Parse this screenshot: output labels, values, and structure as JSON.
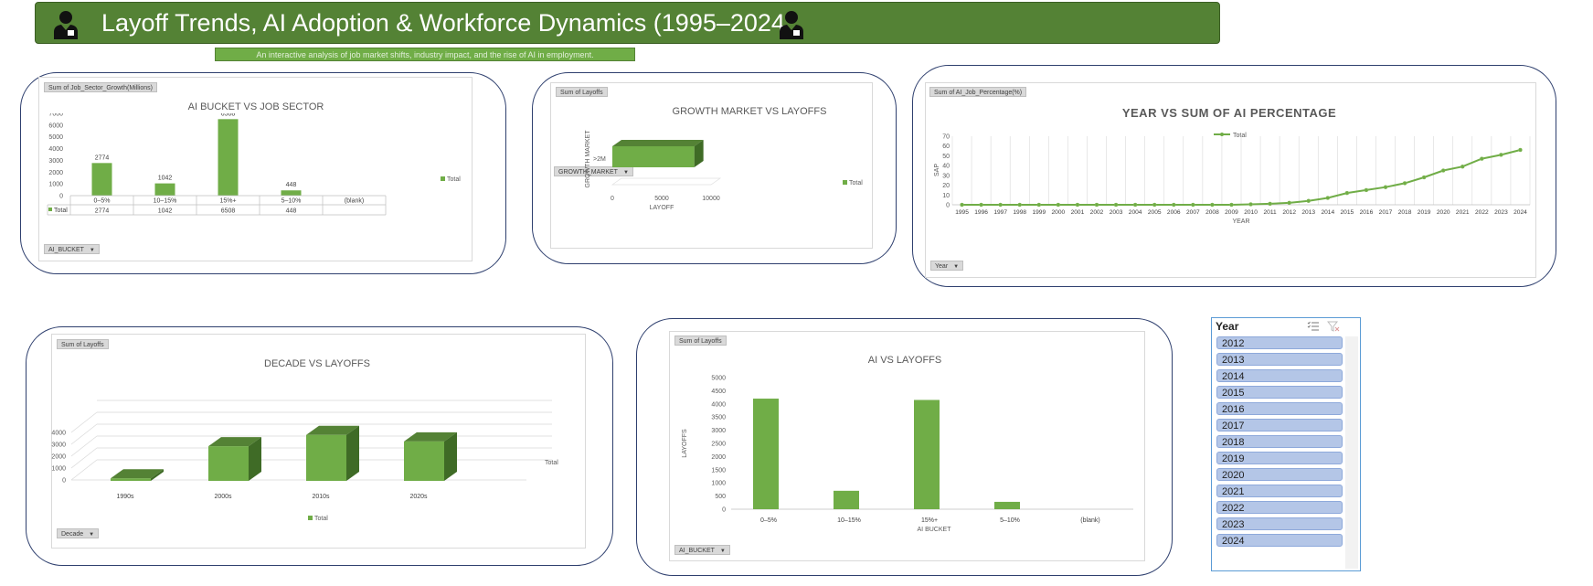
{
  "header": {
    "title": "Layoff Trends, AI Adoption & Workforce Dynamics (1995–2024",
    "subtitle": "An interactive analysis of job market shifts, industry impact, and the rise of AI in employment."
  },
  "charts": {
    "c1": {
      "value_field": "Sum of Job_Sector_Growth(Millions)",
      "axis_field": "AI_BUCKET",
      "legend": "Total",
      "table_row_label": "Total"
    },
    "c2": {
      "value_field": "Sum of Layoffs",
      "filter_field": "GROWTH_MARKET",
      "legend": "Total"
    },
    "c3": {
      "value_field": "Sum of AI_Job_Percentage(%)",
      "axis_field": "Year",
      "legend": "Total"
    },
    "c4": {
      "value_field": "Sum of Layoffs",
      "axis_field": "Decade",
      "legend": "Total",
      "side_label": "Total"
    },
    "c5": {
      "value_field": "Sum of Layoffs",
      "axis_field": "AI_BUCKET"
    }
  },
  "slicer": {
    "title": "Year",
    "items": [
      "2012",
      "2013",
      "2014",
      "2015",
      "2016",
      "2017",
      "2018",
      "2019",
      "2020",
      "2021",
      "2022",
      "2023",
      "2024"
    ]
  },
  "colors": {
    "bar": "#70ad47",
    "bar_dark": "#548235",
    "banner": "#548235"
  },
  "chart_data": [
    {
      "type": "bar",
      "title": "AI BUCKET VS JOB SECTOR",
      "categories": [
        "0–5%",
        "10–15%",
        "15%+",
        "5–10%",
        "(blank)"
      ],
      "values": [
        2774,
        1042,
        6508,
        448,
        null
      ],
      "data_labels": [
        "2774",
        "1042",
        "6508",
        "448",
        ""
      ],
      "yticks": [
        "0",
        "1000",
        "2000",
        "3000",
        "4000",
        "5000",
        "6000",
        "7000"
      ],
      "ylim": [
        0,
        7000
      ],
      "legend": "Total",
      "data_table": true
    },
    {
      "type": "bar",
      "orientation": "horizontal",
      "title": "GROWTH MARKET VS LAYOFFS",
      "categories": [
        ">2M"
      ],
      "values": [
        8300
      ],
      "xticks": [
        "0",
        "5000",
        "10000"
      ],
      "xlim": [
        0,
        10000
      ],
      "xlabel": "LAYOFF",
      "ylabel": "GROWTH MARKET",
      "legend": "Total",
      "style": "3d"
    },
    {
      "type": "line",
      "title": "YEAR VS SUM OF AI PERCENTAGE",
      "x": [
        "1995",
        "1996",
        "1997",
        "1998",
        "1999",
        "2000",
        "2001",
        "2002",
        "2003",
        "2004",
        "2005",
        "2006",
        "2007",
        "2008",
        "2009",
        "2010",
        "2011",
        "2012",
        "2013",
        "2014",
        "2015",
        "2016",
        "2017",
        "2018",
        "2019",
        "2020",
        "2021",
        "2022",
        "2023",
        "2024"
      ],
      "values": [
        0,
        0,
        0,
        0,
        0,
        0,
        0,
        0,
        0,
        0,
        0,
        0,
        0,
        0,
        0,
        0.5,
        1,
        2,
        4,
        7,
        12,
        15,
        18,
        22,
        28,
        35,
        39,
        47,
        51,
        56
      ],
      "yticks": [
        "0",
        "10",
        "20",
        "30",
        "40",
        "50",
        "60",
        "70"
      ],
      "ylim": [
        0,
        70
      ],
      "xlabel": "YEAR",
      "ylabel": "SAP",
      "legend": "Total",
      "legend_position": "top"
    },
    {
      "type": "bar",
      "title": "DECADE VS LAYOFFS",
      "categories": [
        "1990s",
        "2000s",
        "2010s",
        "2020s"
      ],
      "values": [
        600,
        3300,
        4250,
        3700
      ],
      "yticks": [
        "0",
        "1000",
        "2000",
        "3000",
        "4000"
      ],
      "ylim": [
        0,
        5000
      ],
      "legend": "Total",
      "legend_position": "bottom",
      "style": "3d"
    },
    {
      "type": "bar",
      "title": "AI VS LAYOFFS",
      "categories": [
        "0–5%",
        "10–15%",
        "15%+",
        "5–10%",
        "(blank)"
      ],
      "values": [
        4200,
        700,
        4150,
        280,
        0
      ],
      "yticks": [
        "0",
        "500",
        "1000",
        "1500",
        "2000",
        "2500",
        "3000",
        "3500",
        "4000",
        "4500",
        "5000"
      ],
      "ylim": [
        0,
        5000
      ],
      "xlabel": "AI BUCKET",
      "ylabel": "LAYOFFS"
    }
  ]
}
